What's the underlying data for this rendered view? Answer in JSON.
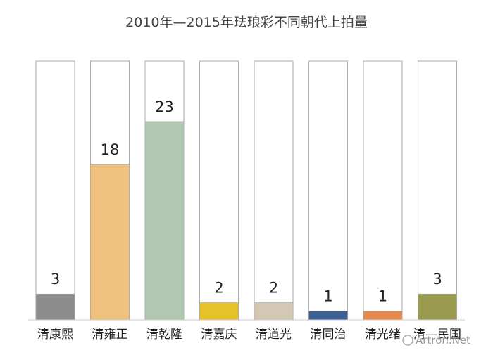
{
  "chart_data": {
    "type": "bar",
    "title": "2010年—2015年珐琅彩不同朝代上拍量",
    "categories": [
      "清康熙",
      "清雍正",
      "清乾隆",
      "清嘉庆",
      "清道光",
      "清同治",
      "清光绪",
      "清—民国"
    ],
    "values": [
      3,
      18,
      23,
      2,
      2,
      1,
      1,
      3
    ],
    "colors": [
      "#8c8c8c",
      "#f0c27e",
      "#b1c8b1",
      "#e6c22a",
      "#d2c8b4",
      "#3c5f94",
      "#e6874b",
      "#9a9a4f"
    ],
    "ylim": [
      0,
      30
    ],
    "grid": false,
    "legend": "none"
  },
  "watermark": "Artron.Net"
}
